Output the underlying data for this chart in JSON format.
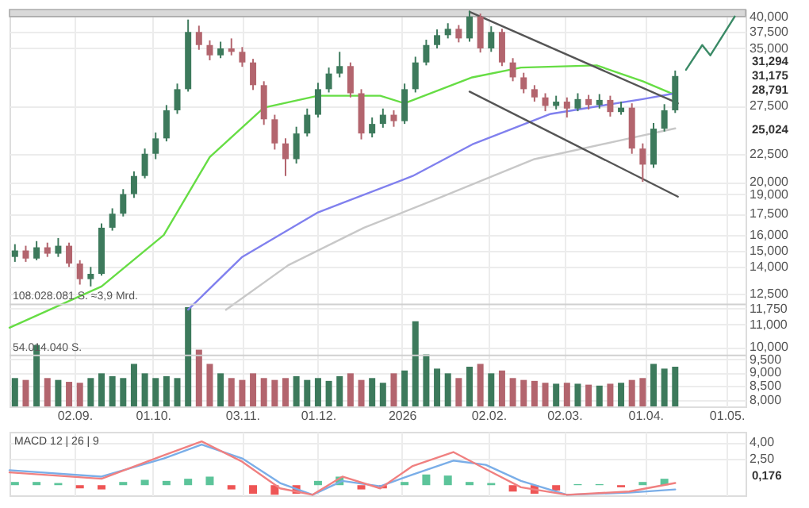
{
  "chart_data": [
    {
      "type": "candlestick",
      "xlim": [
        "2025-08-09",
        "2026-05-08"
      ],
      "xticks": [
        {
          "value": "2025-09-02",
          "label": "02.09."
        },
        {
          "value": "2025-10-01",
          "label": "01.10."
        },
        {
          "value": "2025-11-03",
          "label": "03.11."
        },
        {
          "value": "2025-12-01",
          "label": "01.12."
        },
        {
          "value": "2026-01-01",
          "label": "2026"
        },
        {
          "value": "2026-02-02",
          "label": "02.02."
        },
        {
          "value": "2026-03-02",
          "label": "02.03."
        },
        {
          "value": "2026-04-01",
          "label": "01.04."
        },
        {
          "value": "2026-05-01",
          "label": "01.05."
        }
      ],
      "ylim": [
        7.8,
        41.2
      ],
      "log": "y",
      "yticks": [
        {
          "value": 8,
          "label": "8,000"
        },
        {
          "value": 8.5,
          "label": "8,500"
        },
        {
          "value": 9,
          "label": "9,000"
        },
        {
          "value": 9.5,
          "label": "9,500"
        },
        {
          "value": 10,
          "label": "10,000"
        },
        {
          "value": 11,
          "label": "11,000"
        },
        {
          "value": 11.75,
          "label": "11,750"
        },
        {
          "value": 12.5,
          "label": "12,500"
        },
        {
          "value": 14,
          "label": "14,000"
        },
        {
          "value": 15,
          "label": "15,000"
        },
        {
          "value": 16,
          "label": "16,000"
        },
        {
          "value": 17.5,
          "label": "17,500"
        },
        {
          "value": 19,
          "label": "19,000"
        },
        {
          "value": 20,
          "label": "20,000"
        },
        {
          "value": 22.5,
          "label": "22,500"
        },
        {
          "value": 27.5,
          "label": "27,500"
        },
        {
          "value": 35,
          "label": "35,000"
        },
        {
          "value": 37.5,
          "label": "37,500"
        },
        {
          "value": 40,
          "label": "40,000"
        }
      ],
      "y2lim": [
        0,
        420000000
      ],
      "grid": true,
      "bands": [
        {
          "axis": "y",
          "from": 40,
          "to": 41.2,
          "color": "#d9d9d9"
        }
      ],
      "ref_lines": [
        {
          "axis": "y2",
          "value": 108028081,
          "label": "108.028.081 S. ≈3,9 Mrd.",
          "color": "#d0d0d0"
        },
        {
          "axis": "y2",
          "value": 54014040,
          "label": "54.014.040 S.",
          "color": "#d0d0d0"
        }
      ],
      "annotations": [
        "31,294",
        "31,175",
        "28,791",
        "25,024"
      ],
      "series": [
        {
          "type": "bar",
          "axis": "y2",
          "x": [
            "2025-08-11",
            "2025-08-15",
            "2025-08-19",
            "2025-08-23",
            "2025-08-27",
            "2025-08-31",
            "2025-09-04",
            "2025-09-08",
            "2025-09-12",
            "2025-09-16",
            "2025-09-20",
            "2025-09-24",
            "2025-09-28",
            "2025-10-02",
            "2025-10-06",
            "2025-10-10",
            "2025-10-14",
            "2025-10-18",
            "2025-10-22",
            "2025-10-26",
            "2025-10-30",
            "2025-11-03",
            "2025-11-07",
            "2025-11-11",
            "2025-11-15",
            "2025-11-19",
            "2025-11-23",
            "2025-11-27",
            "2025-12-01",
            "2025-12-05",
            "2025-12-09",
            "2025-12-13",
            "2025-12-17",
            "2025-12-21",
            "2025-12-25",
            "2025-12-29",
            "2026-01-02",
            "2026-01-06",
            "2026-01-10",
            "2026-01-14",
            "2026-01-18",
            "2026-01-22",
            "2026-01-26",
            "2026-01-30",
            "2026-02-03",
            "2026-02-07",
            "2026-02-11",
            "2026-02-15",
            "2026-02-19",
            "2026-02-23",
            "2026-02-27",
            "2026-03-03",
            "2026-03-07",
            "2026-03-11",
            "2026-03-15",
            "2026-03-19",
            "2026-03-23",
            "2026-03-27",
            "2026-03-31",
            "2026-04-04",
            "2026-04-08",
            "2026-04-12"
          ],
          "values": [
            30000000,
            28000000,
            65000000,
            30000000,
            28000000,
            26000000,
            25000000,
            30000000,
            35000000,
            32000000,
            30000000,
            45000000,
            35000000,
            30000000,
            32000000,
            30000000,
            105000000,
            60000000,
            45000000,
            35000000,
            30000000,
            28000000,
            35000000,
            30000000,
            28000000,
            30000000,
            32000000,
            28000000,
            30000000,
            27000000,
            32000000,
            35000000,
            28000000,
            30000000,
            25000000,
            35000000,
            38000000,
            90000000,
            55000000,
            40000000,
            35000000,
            30000000,
            42000000,
            45000000,
            35000000,
            38000000,
            30000000,
            28000000,
            27000000,
            25000000,
            24000000,
            25000000,
            24000000,
            23000000,
            22000000,
            24000000,
            25000000,
            28000000,
            30000000,
            45000000,
            40000000,
            42000000
          ],
          "colors": [
            "#3d7a5c",
            "#b3656e",
            "#3d7a5c",
            "#b3656e",
            "#3d7a5c",
            "#b3656e",
            "#b3656e",
            "#3d7a5c",
            "#3d7a5c",
            "#3d7a5c",
            "#3d7a5c",
            "#3d7a5c",
            "#3d7a5c",
            "#3d7a5c",
            "#3d7a5c",
            "#3d7a5c",
            "#3d7a5c",
            "#b3656e",
            "#b3656e",
            "#3d7a5c",
            "#b3656e",
            "#b3656e",
            "#b3656e",
            "#b3656e",
            "#b3656e",
            "#b3656e",
            "#3d7a5c",
            "#3d7a5c",
            "#3d7a5c",
            "#3d7a5c",
            "#3d7a5c",
            "#b3656e",
            "#b3656e",
            "#3d7a5c",
            "#3d7a5c",
            "#b3656e",
            "#3d7a5c",
            "#3d7a5c",
            "#3d7a5c",
            "#3d7a5c",
            "#3d7a5c",
            "#b3656e",
            "#3d7a5c",
            "#b3656e",
            "#3d7a5c",
            "#b3656e",
            "#b3656e",
            "#b3656e",
            "#b3656e",
            "#b3656e",
            "#3d7a5c",
            "#b3656e",
            "#3d7a5c",
            "#b3656e",
            "#3d7a5c",
            "#b3656e",
            "#3d7a5c",
            "#b3656e",
            "#b3656e",
            "#3d7a5c",
            "#3d7a5c",
            "#3d7a5c"
          ]
        },
        {
          "type": "line",
          "color": "#66dd44",
          "x": [
            "2025-08-09",
            "2025-09-12",
            "2025-10-05",
            "2025-10-22",
            "2025-11-11",
            "2025-12-01",
            "2025-12-24",
            "2026-01-02",
            "2026-01-27",
            "2026-02-14",
            "2026-03-14",
            "2026-03-31",
            "2026-04-12"
          ],
          "values": [
            10.85,
            12.9,
            16.0,
            22.2,
            27.3,
            28.7,
            28.7,
            27.8,
            31.0,
            32.3,
            32.6,
            30.5,
            28.791
          ]
        },
        {
          "type": "line",
          "color": "#8080ee",
          "x": [
            "2025-10-14",
            "2025-11-03",
            "2025-12-01",
            "2026-01-05",
            "2026-01-27",
            "2026-02-25",
            "2026-03-31",
            "2026-04-12"
          ],
          "values": [
            11.7,
            14.6,
            17.6,
            20.5,
            23.4,
            26.6,
            28.3,
            29.0
          ]
        },
        {
          "type": "line",
          "color": "#c8c8c8",
          "x": [
            "2025-10-28",
            "2025-11-20",
            "2025-12-18",
            "2026-01-16",
            "2026-02-19",
            "2026-03-26",
            "2026-04-12"
          ],
          "values": [
            11.7,
            14.1,
            16.5,
            18.8,
            22.0,
            24.0,
            25.024
          ]
        },
        {
          "type": "line",
          "color": "#555555",
          "x": [
            "2026-01-26",
            "2026-04-13"
          ],
          "values": [
            40.8,
            27.8
          ]
        },
        {
          "type": "line",
          "color": "#555555",
          "x": [
            "2026-01-26",
            "2026-04-13"
          ],
          "values": [
            29.2,
            18.8
          ]
        },
        {
          "type": "line",
          "color": "#3a8a66",
          "x": [
            "2026-04-16",
            "2026-04-22",
            "2026-04-25",
            "2026-05-04"
          ],
          "values": [
            32.0,
            35.5,
            34.0,
            40.0
          ]
        },
        {
          "type": "candlestick",
          "x": [
            "2025-08-11",
            "2025-08-15",
            "2025-08-19",
            "2025-08-23",
            "2025-08-27",
            "2025-08-31",
            "2025-09-04",
            "2025-09-08",
            "2025-09-12",
            "2025-09-16",
            "2025-09-20",
            "2025-09-24",
            "2025-09-28",
            "2025-10-02",
            "2025-10-06",
            "2025-10-10",
            "2025-10-14",
            "2025-10-18",
            "2025-10-22",
            "2025-10-26",
            "2025-10-30",
            "2025-11-03",
            "2025-11-07",
            "2025-11-11",
            "2025-11-15",
            "2025-11-19",
            "2025-11-23",
            "2025-11-27",
            "2025-12-01",
            "2025-12-05",
            "2025-12-09",
            "2025-12-13",
            "2025-12-17",
            "2025-12-21",
            "2025-12-25",
            "2025-12-29",
            "2026-01-02",
            "2026-01-06",
            "2026-01-10",
            "2026-01-14",
            "2026-01-18",
            "2026-01-22",
            "2026-01-26",
            "2026-01-30",
            "2026-02-03",
            "2026-02-07",
            "2026-02-11",
            "2026-02-15",
            "2026-02-19",
            "2026-02-23",
            "2026-02-27",
            "2026-03-03",
            "2026-03-07",
            "2026-03-11",
            "2026-03-15",
            "2026-03-19",
            "2026-03-23",
            "2026-03-27",
            "2026-03-31",
            "2026-04-04",
            "2026-04-08",
            "2026-04-12"
          ],
          "ohlc": [
            [
              14.6,
              15.4,
              14.3,
              15.0
            ],
            [
              15.0,
              15.3,
              14.3,
              14.5
            ],
            [
              14.5,
              15.6,
              14.4,
              15.2
            ],
            [
              15.2,
              15.5,
              14.6,
              14.8
            ],
            [
              14.8,
              15.8,
              14.6,
              15.3
            ],
            [
              15.3,
              15.5,
              14.0,
              14.2
            ],
            [
              14.2,
              14.4,
              13.0,
              13.3
            ],
            [
              13.3,
              14.0,
              12.9,
              13.6
            ],
            [
              13.6,
              16.8,
              13.5,
              16.5
            ],
            [
              16.5,
              17.9,
              16.3,
              17.5
            ],
            [
              17.5,
              19.4,
              17.3,
              19.0
            ],
            [
              19.0,
              20.9,
              18.7,
              20.5
            ],
            [
              20.5,
              23.0,
              20.3,
              22.5
            ],
            [
              22.5,
              24.6,
              22.0,
              24.0
            ],
            [
              24.0,
              27.6,
              23.7,
              27.0
            ],
            [
              27.0,
              30.2,
              26.6,
              29.5
            ],
            [
              29.5,
              39.5,
              29.2,
              37.5
            ],
            [
              37.5,
              38.5,
              34.8,
              35.5
            ],
            [
              35.5,
              36.2,
              33.3,
              34.0
            ],
            [
              34.0,
              36.0,
              33.6,
              35.0
            ],
            [
              35.0,
              36.5,
              34.0,
              34.5
            ],
            [
              34.5,
              35.2,
              32.4,
              33.0
            ],
            [
              33.0,
              33.5,
              29.4,
              30.0
            ],
            [
              30.0,
              30.5,
              25.4,
              26.0
            ],
            [
              26.0,
              26.5,
              22.9,
              23.5
            ],
            [
              23.5,
              24.0,
              20.5,
              22.0
            ],
            [
              22.0,
              25.2,
              21.6,
              24.5
            ],
            [
              24.5,
              27.2,
              24.2,
              26.5
            ],
            [
              26.5,
              30.3,
              26.2,
              29.5
            ],
            [
              29.5,
              32.3,
              29.1,
              31.5
            ],
            [
              31.5,
              34.5,
              31.0,
              32.5
            ],
            [
              32.5,
              33.0,
              28.5,
              29.0
            ],
            [
              29.0,
              29.5,
              23.9,
              24.5
            ],
            [
              24.5,
              26.2,
              24.1,
              25.5
            ],
            [
              25.5,
              27.2,
              25.1,
              26.5
            ],
            [
              26.5,
              27.0,
              25.2,
              25.8
            ],
            [
              25.8,
              30.2,
              25.5,
              29.5
            ],
            [
              29.5,
              33.8,
              29.1,
              33.0
            ],
            [
              33.0,
              36.3,
              32.6,
              35.5
            ],
            [
              35.5,
              37.9,
              35.0,
              37.0
            ],
            [
              37.0,
              38.9,
              36.5,
              38.0
            ],
            [
              38.0,
              38.6,
              35.9,
              36.5
            ],
            [
              36.5,
              41.0,
              36.0,
              40.0
            ],
            [
              40.0,
              40.5,
              34.4,
              35.0
            ],
            [
              35.0,
              38.4,
              34.5,
              37.5
            ],
            [
              37.5,
              38.0,
              32.5,
              33.0
            ],
            [
              33.0,
              33.6,
              30.5,
              31.0
            ],
            [
              31.0,
              31.6,
              29.0,
              29.5
            ],
            [
              29.5,
              30.0,
              28.0,
              28.5
            ],
            [
              28.5,
              29.0,
              26.9,
              27.5
            ],
            [
              27.5,
              28.7,
              27.1,
              28.0
            ],
            [
              28.0,
              28.5,
              26.2,
              27.2
            ],
            [
              27.2,
              29.0,
              26.9,
              28.3
            ],
            [
              28.3,
              28.8,
              27.1,
              27.6
            ],
            [
              27.6,
              28.9,
              27.2,
              28.2
            ],
            [
              28.2,
              28.7,
              26.3,
              26.8
            ],
            [
              26.8,
              28.0,
              26.5,
              27.3
            ],
            [
              27.3,
              27.8,
              22.5,
              23.0
            ],
            [
              23.0,
              23.5,
              20.0,
              21.5
            ],
            [
              21.5,
              25.6,
              21.2,
              25.0
            ],
            [
              25.0,
              27.7,
              24.7,
              27.0
            ],
            [
              27.0,
              31.9,
              26.7,
              31.175
            ]
          ],
          "colors": [
            "#3d7a5c",
            "#b3656e",
            "#3d7a5c",
            "#b3656e",
            "#3d7a5c",
            "#b3656e",
            "#b3656e",
            "#3d7a5c",
            "#3d7a5c",
            "#3d7a5c",
            "#3d7a5c",
            "#3d7a5c",
            "#3d7a5c",
            "#3d7a5c",
            "#3d7a5c",
            "#3d7a5c",
            "#3d7a5c",
            "#b3656e",
            "#b3656e",
            "#3d7a5c",
            "#b3656e",
            "#b3656e",
            "#b3656e",
            "#b3656e",
            "#b3656e",
            "#b3656e",
            "#3d7a5c",
            "#3d7a5c",
            "#3d7a5c",
            "#3d7a5c",
            "#3d7a5c",
            "#b3656e",
            "#b3656e",
            "#3d7a5c",
            "#3d7a5c",
            "#b3656e",
            "#3d7a5c",
            "#3d7a5c",
            "#3d7a5c",
            "#3d7a5c",
            "#3d7a5c",
            "#b3656e",
            "#3d7a5c",
            "#b3656e",
            "#3d7a5c",
            "#b3656e",
            "#b3656e",
            "#b3656e",
            "#b3656e",
            "#b3656e",
            "#3d7a5c",
            "#b3656e",
            "#3d7a5c",
            "#b3656e",
            "#3d7a5c",
            "#b3656e",
            "#3d7a5c",
            "#b3656e",
            "#b3656e",
            "#3d7a5c",
            "#3d7a5c",
            "#3d7a5c"
          ]
        }
      ]
    },
    {
      "type": "line",
      "xlim": [
        "2025-08-09",
        "2026-05-08"
      ],
      "xticks": [
        {
          "value": "2025-09-02",
          "label": null
        },
        {
          "value": "2025-10-01",
          "label": null
        },
        {
          "value": "2025-11-03",
          "label": null
        },
        {
          "value": "2025-12-01",
          "label": null
        },
        {
          "value": "2026-01-01",
          "label": null
        },
        {
          "value": "2026-02-02",
          "label": null
        },
        {
          "value": "2026-03-02",
          "label": null
        },
        {
          "value": "2026-04-01",
          "label": null
        },
        {
          "value": "2026-05-01",
          "label": null
        }
      ],
      "ylim": [
        -0.95,
        5.0
      ],
      "yticks": [
        {
          "value": 4,
          "label": "4,00"
        },
        {
          "value": 2.5,
          "label": "2,50"
        }
      ],
      "tick_labels": "y",
      "grid": true,
      "annotations": [
        "MACD 12 | 26 | 9",
        "0,176"
      ],
      "series": [
        {
          "type": "bar",
          "x": [
            "2025-08-11",
            "2025-08-19",
            "2025-08-27",
            "2025-09-04",
            "2025-09-12",
            "2025-09-20",
            "2025-09-28",
            "2025-10-06",
            "2025-10-14",
            "2025-10-22",
            "2025-10-30",
            "2025-11-07",
            "2025-11-15",
            "2025-11-23",
            "2025-12-01",
            "2025-12-09",
            "2025-12-17",
            "2025-12-25",
            "2026-01-02",
            "2026-01-10",
            "2026-01-18",
            "2026-01-26",
            "2026-02-03",
            "2026-02-11",
            "2026-02-19",
            "2026-02-27",
            "2026-03-07",
            "2026-03-15",
            "2026-03-23",
            "2026-03-31",
            "2026-04-08"
          ],
          "values": [
            0.3,
            0.3,
            0.2,
            -0.3,
            -0.4,
            0.3,
            0.5,
            0.4,
            0.6,
            0.8,
            -0.4,
            -0.8,
            -0.9,
            -0.8,
            0.4,
            0.8,
            -0.4,
            -0.3,
            0.3,
            1.0,
            0.9,
            0.3,
            0.2,
            -0.6,
            -0.8,
            -0.5,
            0.1,
            0.1,
            -0.2,
            0.3,
            0.6
          ],
          "colors": [
            "#5cc49a",
            "#5cc49a",
            "#5cc49a",
            "#ee5555",
            "#ee5555",
            "#5cc49a",
            "#5cc49a",
            "#5cc49a",
            "#5cc49a",
            "#5cc49a",
            "#ee5555",
            "#ee5555",
            "#ee5555",
            "#ee5555",
            "#5cc49a",
            "#5cc49a",
            "#ee5555",
            "#ee5555",
            "#5cc49a",
            "#5cc49a",
            "#5cc49a",
            "#5cc49a",
            "#5cc49a",
            "#ee5555",
            "#ee5555",
            "#ee5555",
            "#5cc49a",
            "#5cc49a",
            "#ee5555",
            "#5cc49a",
            "#5cc49a"
          ]
        },
        {
          "color": "#7aaee8",
          "x": [
            "2025-08-09",
            "2025-09-12",
            "2025-10-05",
            "2025-10-19",
            "2025-11-03",
            "2025-11-17",
            "2025-11-29",
            "2025-12-10",
            "2025-12-24",
            "2026-01-05",
            "2026-01-20",
            "2026-02-01",
            "2026-02-14",
            "2026-03-03",
            "2026-03-26",
            "2026-04-12"
          ],
          "values": [
            1.4,
            0.8,
            2.5,
            3.8,
            2.5,
            0.2,
            -0.9,
            0.4,
            -0.1,
            1.0,
            2.3,
            1.9,
            0.4,
            -0.9,
            -0.7,
            -0.4
          ]
        },
        {
          "color": "#f08080",
          "x": [
            "2025-08-09",
            "2025-09-12",
            "2025-10-05",
            "2025-10-19",
            "2025-11-03",
            "2025-11-17",
            "2025-11-29",
            "2025-12-10",
            "2025-12-24",
            "2026-01-05",
            "2026-01-20",
            "2026-02-01",
            "2026-02-14",
            "2026-03-03",
            "2026-03-26",
            "2026-04-12"
          ],
          "values": [
            1.2,
            0.6,
            2.8,
            4.1,
            2.2,
            -0.3,
            -0.9,
            0.8,
            -0.3,
            1.8,
            3.1,
            1.5,
            -0.2,
            -0.9,
            -0.6,
            0.2
          ]
        }
      ]
    }
  ]
}
